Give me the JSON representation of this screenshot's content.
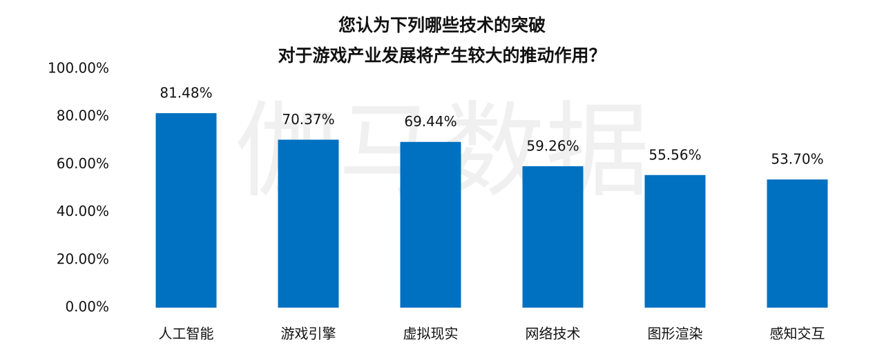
{
  "chart_data": {
    "type": "bar",
    "title": [
      "您认为下列哪些技术的突破",
      "对于游戏产业发展将产生较大的推动作用？"
    ],
    "watermark": "伽马数据",
    "categories": [
      "人工智能",
      "游戏引擎",
      "虚拟现实",
      "网络技术",
      "图形渲染",
      "感知交互"
    ],
    "values": [
      81.48,
      70.37,
      69.44,
      59.26,
      55.56,
      53.7
    ],
    "value_labels": [
      "81.48%",
      "70.37%",
      "69.44%",
      "59.26%",
      "55.56%",
      "53.70%"
    ],
    "color": "#0070c0",
    "ylim": [
      0,
      100
    ],
    "yticks": [
      {
        "value": 0,
        "label": "0.00%"
      },
      {
        "value": 20,
        "label": "20.00%"
      },
      {
        "value": 40,
        "label": "40.00%"
      },
      {
        "value": 60,
        "label": "60.00%"
      },
      {
        "value": 80,
        "label": "80.00%"
      },
      {
        "value": 100,
        "label": "100.00%"
      }
    ],
    "grid": false
  }
}
